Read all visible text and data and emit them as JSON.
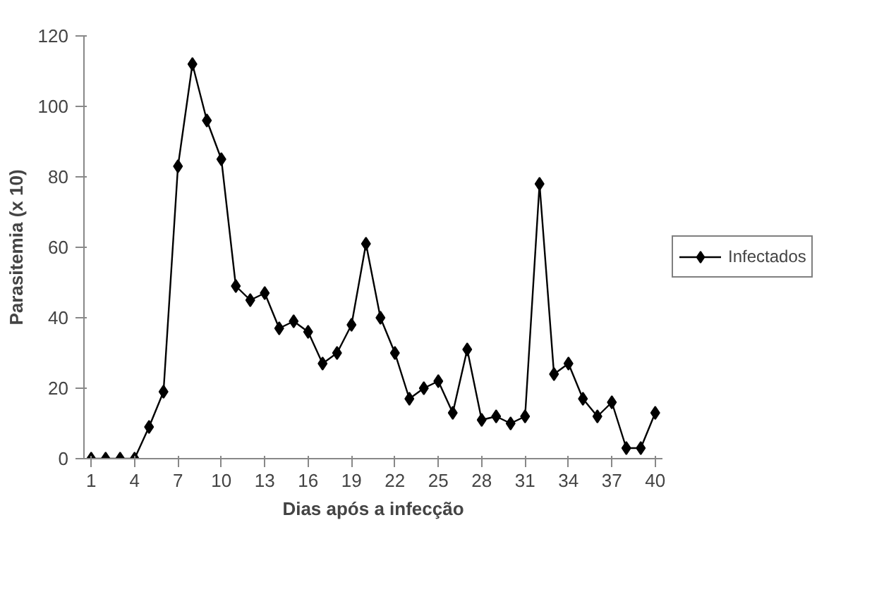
{
  "chart_data": {
    "type": "line",
    "xlabel": "Dias após a infecção",
    "ylabel": "Parasitemia (x 10)",
    "x": [
      1,
      2,
      3,
      4,
      5,
      6,
      7,
      8,
      9,
      10,
      11,
      12,
      13,
      14,
      15,
      16,
      17,
      18,
      19,
      20,
      21,
      22,
      23,
      24,
      25,
      26,
      27,
      28,
      29,
      30,
      31,
      32,
      33,
      34,
      35,
      36,
      37,
      38,
      39,
      40
    ],
    "xlim": [
      0.5,
      40.5
    ],
    "xticks": [
      1,
      4,
      7,
      10,
      13,
      16,
      19,
      22,
      25,
      28,
      31,
      34,
      37,
      40
    ],
    "ylim": [
      0,
      120
    ],
    "yticks": [
      0,
      20,
      40,
      60,
      80,
      100,
      120
    ],
    "series": [
      {
        "name": "Infectados",
        "color": "#000000",
        "values": [
          0,
          0,
          0,
          0,
          9,
          19,
          83,
          112,
          96,
          85,
          49,
          45,
          47,
          37,
          39,
          36,
          27,
          30,
          38,
          61,
          40,
          30,
          17,
          20,
          22,
          13,
          31,
          11,
          12,
          10,
          12,
          78,
          24,
          27,
          17,
          12,
          16,
          3,
          3,
          13
        ]
      }
    ],
    "marker": "diamond",
    "line_style": "solid",
    "grid": false,
    "legend": "right"
  }
}
